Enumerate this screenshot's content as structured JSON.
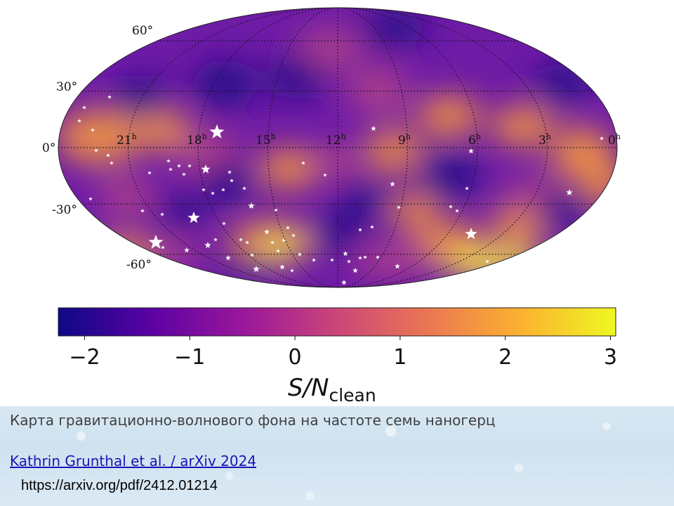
{
  "map": {
    "projection": "mollweide",
    "colormap": "plasma",
    "lat_labels": [
      "60°",
      "30°",
      "0°",
      "-30°",
      "-60°"
    ],
    "ra_labels": [
      {
        "hours": "21",
        "sup": "h"
      },
      {
        "hours": "18",
        "sup": "h"
      },
      {
        "hours": "15",
        "sup": "h"
      },
      {
        "hours": "12",
        "sup": "h"
      },
      {
        "hours": "9",
        "sup": "h"
      },
      {
        "hours": "6",
        "sup": "h"
      },
      {
        "hours": "3",
        "sup": "h"
      },
      {
        "hours": "0",
        "sup": "h"
      }
    ],
    "colors": {
      "deep": "#2a0b8a",
      "purple": "#6a13a3",
      "magenta": "#a83c8c",
      "orange": "#e6894a",
      "yellow": "#f5e34b",
      "grid": "#111111",
      "star": "#ffffff"
    }
  },
  "colorbar": {
    "title_main": "S/N",
    "title_sub": "clean",
    "range": [
      -2.25,
      3.05
    ],
    "ticks": [
      {
        "value": -2,
        "label": "−2"
      },
      {
        "value": -1,
        "label": "−1"
      },
      {
        "value": 0,
        "label": "0"
      },
      {
        "value": 1,
        "label": "1"
      },
      {
        "value": 2,
        "label": "2"
      },
      {
        "value": 3,
        "label": "3"
      }
    ],
    "stops": [
      "#0d0887",
      "#5b02a3",
      "#9a179b",
      "#cb4678",
      "#eb7852",
      "#fbb32f",
      "#eff821"
    ]
  },
  "caption": {
    "text": "Карта гравитационно-волнового фона на частоте семь наногерц",
    "link": "Kathrin Grunthal et al. / arXiv 2024",
    "url": "https://arxiv.org/pdf/2412.01214"
  }
}
